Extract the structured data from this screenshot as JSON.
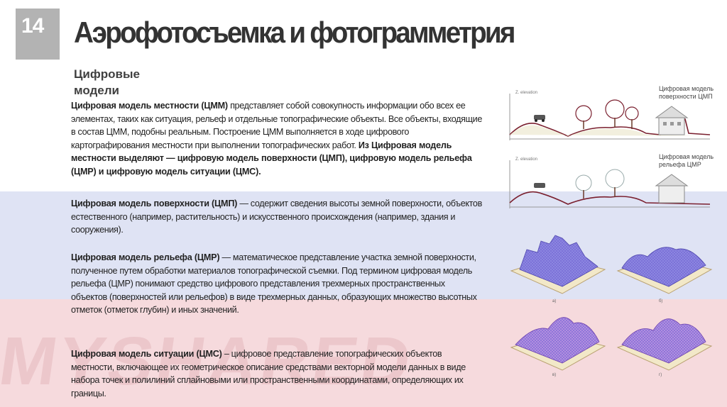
{
  "slide": {
    "number": "14",
    "title": "Аэрофотосъемка и фотограмметрия",
    "subtitle": "Цифровые модели",
    "watermark": "MYSHARED"
  },
  "paragraphs": {
    "p1_term": "Цифровая модель местности (ЦММ)",
    "p1_text": " представляет собой совокупность информации обо всех ее элементах, таких как ситуация, рельеф и отдельные топографические объекты. Все объекты, входящие в состав ЦММ, подобны реальным. Построение ЦММ выполняется в ходе цифрового картографирования местности при выполнении топографических работ.",
    "p1_bold": " Из Цифровая модель местности выделяют — цифровую модель поверхности (ЦМП), цифровую модель рельефа (ЦМР) и цифровую модель ситуации (ЦМС).",
    "p2_term": "Цифровая модель поверхности (ЦМП)",
    "p2_text": " — содержит сведения высоты земной поверхности, объектов естественного (например, растительность) и искусственного происхождения (например, здания и сооружения).",
    "p3_term": "Цифровая модель рельефа (ЦМР)",
    "p3_text": " — математическое представление участка земной поверхности, полученное путем обработки материалов топографической съемки. Под термином цифровая модель рельефа (ЦМР) понимают средство цифрового представления трехмерных пространственных объектов (поверхностей или рельефов) в виде трехмерных данных, образующих множество высотных отметок (отметок глубин) и иных значений.",
    "p4_term": "Цифровая модель ситуации (ЦМС)",
    "p4_text": " – цифровое представление топографических объектов местности, включающее их геометрическое описание средствами векторной модели данных в виде набора точек и полилиний сплайновыми или пространственными координатами, определяющих их границы."
  },
  "figure": {
    "caption_dsm": "Цифровая модель поверхности ЦМП",
    "caption_dem": "Цифровая модель рельефа ЦМР",
    "axis_label": "Z. elevation",
    "panel_labels": [
      "а)",
      "б)",
      "в)",
      "г)"
    ]
  }
}
